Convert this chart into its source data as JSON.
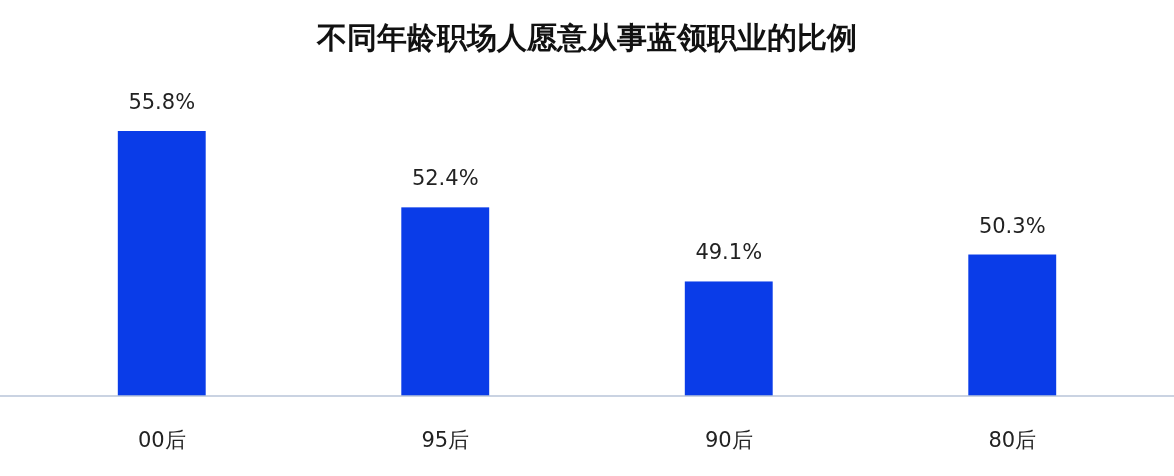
{
  "chart_data": {
    "type": "bar",
    "title": "不同年龄职场人愿意从事蓝领职业的比例",
    "categories": [
      "00后",
      "95后",
      "90后",
      "80后"
    ],
    "values": [
      55.8,
      52.4,
      49.1,
      50.3
    ],
    "value_labels": [
      "55.8%",
      "52.4%",
      "49.1%",
      "50.3%"
    ],
    "color": "#0a3ce8",
    "ylim": [
      44,
      55.8
    ],
    "tick_labels": "x"
  }
}
